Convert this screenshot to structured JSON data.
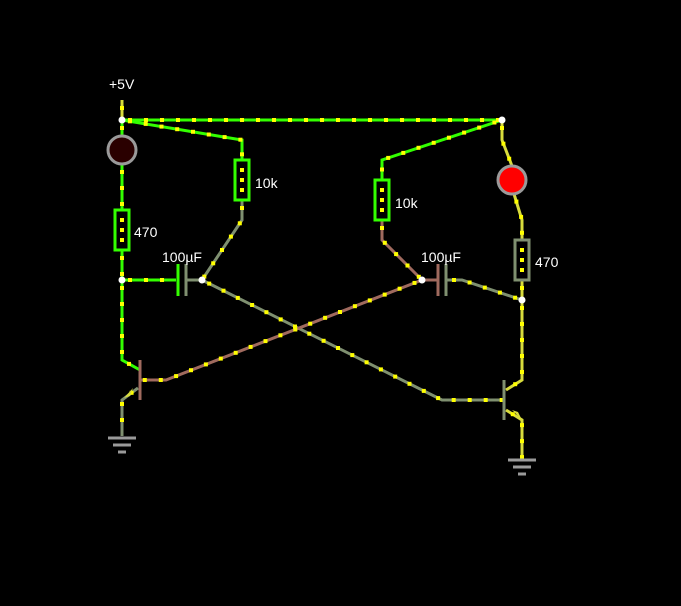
{
  "labels": {
    "supply": "+5V",
    "r_load_left": "470",
    "r_load_right": "470",
    "r_base_left": "10k",
    "r_base_right": "10k",
    "cap_left": "100µF",
    "cap_right": "100µF"
  },
  "state": {
    "led_left": "off",
    "led_right": "on"
  },
  "colors": {
    "background": "#000000",
    "wire_bright": "#33ff00",
    "wire_yellow": "#d8dc3c",
    "wire_gray": "#7f9070",
    "wire_brown": "#a06a5e",
    "current_dot": "#ffff00",
    "node": "#ffffff",
    "led_on": "#ff0000",
    "led_off": "#2a0000",
    "led_ring": "#9a9a9a",
    "ground": "#9a9a9a"
  },
  "icons": {
    "led": "led-icon",
    "resistor": "resistor-icon",
    "capacitor": "capacitor-icon",
    "transistor": "npn-transistor-icon",
    "ground": "ground-icon"
  }
}
